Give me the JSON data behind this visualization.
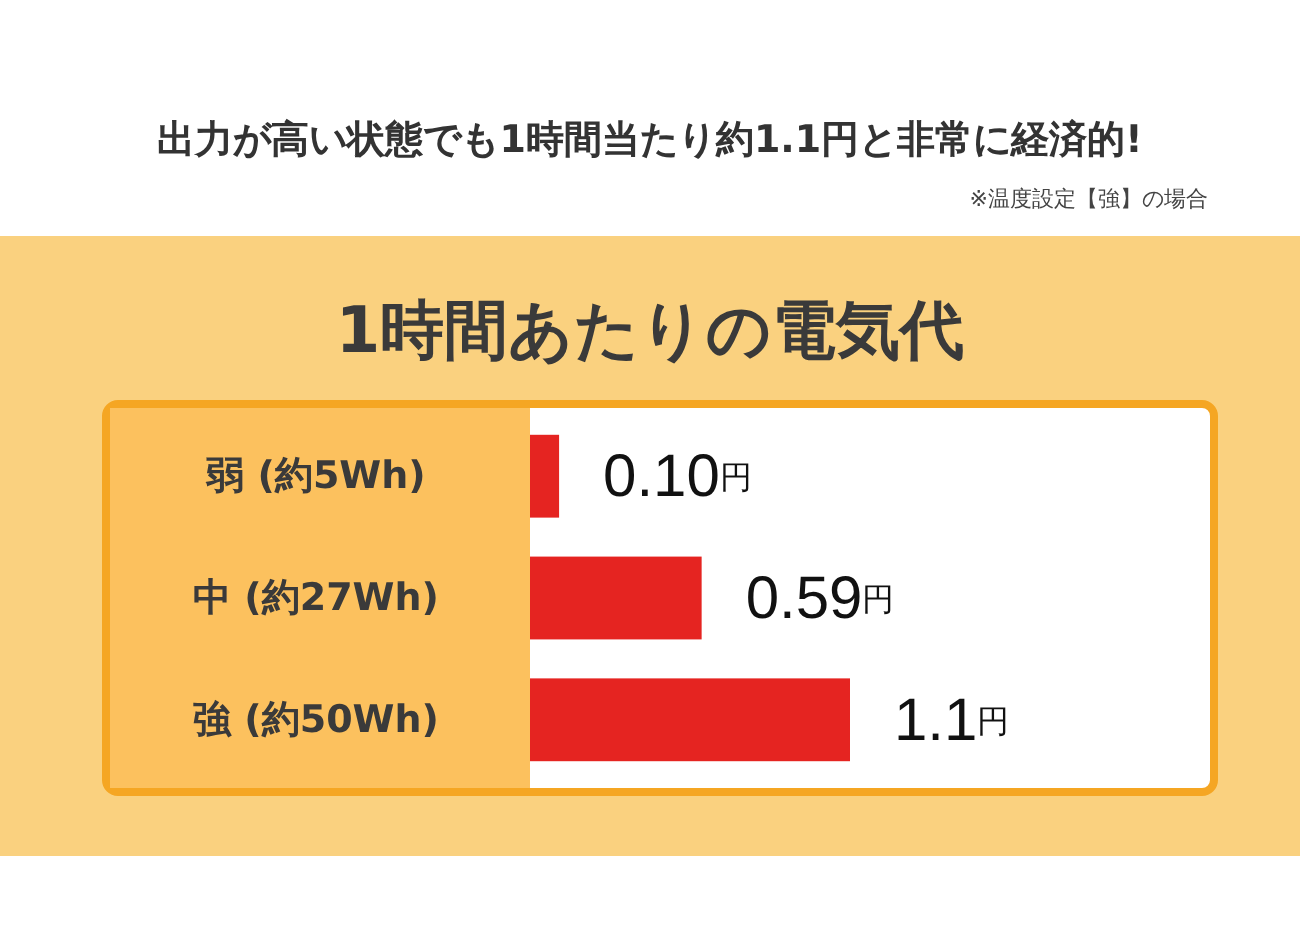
{
  "chart_data": {
    "type": "bar",
    "orientation": "horizontal",
    "title": "出力が高い状態でも1時間当たり約1.1円と非常に経済的!",
    "subtitle": "1時間あたりの電気代",
    "annotations": [
      "※温度設定【強】の場合"
    ],
    "categories": [
      "弱 (約5Wh)",
      "中 (約27Wh)",
      "強 (約50Wh)"
    ],
    "values": [
      0.1,
      0.59,
      1.1
    ],
    "color": "#e52421",
    "value_labels": [
      "0.10円",
      "0.59円",
      "1.1円"
    ]
  }
}
